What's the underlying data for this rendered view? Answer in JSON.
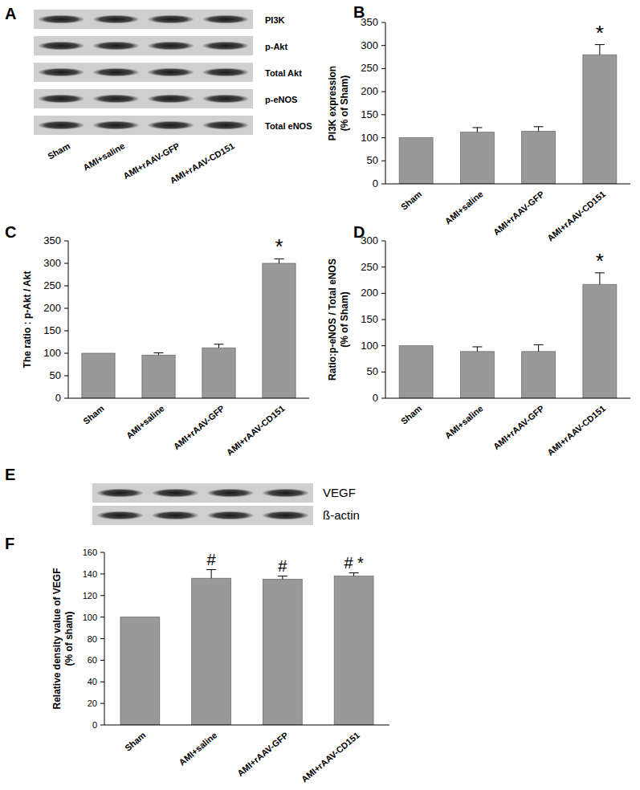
{
  "chart_data": [
    {
      "type": "bar",
      "panel": "B",
      "y_label": [
        "PI3K expression",
        "(% of Sham)"
      ],
      "categories": [
        "Sham",
        "AMI+saline",
        "AMI+rAAV-GFP",
        "AMI+rAAV-CD151"
      ],
      "values": [
        100,
        112,
        114,
        280
      ],
      "errors": [
        0,
        10,
        10,
        22
      ],
      "annotations": [
        null,
        null,
        null,
        "*"
      ],
      "color": "#999999",
      "ylim": [
        0,
        350
      ],
      "yticks": [
        0,
        50,
        100,
        150,
        200,
        250,
        300,
        350
      ],
      "grid": false
    },
    {
      "type": "bar",
      "panel": "C",
      "y_label": [
        "The ratio : p-Akt / Akt"
      ],
      "categories": [
        "Sham",
        "AMI+saline",
        "AMI+rAAV-GFP",
        "AMI+rAAV-CD151"
      ],
      "values": [
        100,
        96,
        112,
        300
      ],
      "errors": [
        0,
        5,
        8,
        10
      ],
      "annotations": [
        null,
        null,
        null,
        "*"
      ],
      "color": "#999999",
      "ylim": [
        0,
        350
      ],
      "yticks": [
        0,
        50,
        100,
        150,
        200,
        250,
        300,
        350
      ],
      "grid": false
    },
    {
      "type": "bar",
      "panel": "D",
      "y_label": [
        "Ratio:p-eNOS / Total eNOS",
        "(% of Sham)"
      ],
      "categories": [
        "Sham",
        "AMI+saline",
        "AMI+rAAV-GFP",
        "AMI+rAAV-CD151"
      ],
      "values": [
        100,
        89,
        89,
        217
      ],
      "errors": [
        0,
        9,
        13,
        22
      ],
      "annotations": [
        null,
        null,
        null,
        "*"
      ],
      "color": "#999999",
      "ylim": [
        0,
        300
      ],
      "yticks": [
        0,
        50,
        100,
        150,
        200,
        250,
        300
      ],
      "grid": false
    },
    {
      "type": "bar",
      "panel": "F",
      "y_label": [
        "Relative density value of VEGF",
        "(% of sham)"
      ],
      "categories": [
        "Sham",
        "AMI+saline",
        "AMI+rAAV-GFP",
        "AMI+rAAV-CD151"
      ],
      "values": [
        100,
        136,
        135,
        138
      ],
      "errors": [
        0,
        8,
        3,
        3
      ],
      "annotations": [
        null,
        "#",
        "#",
        "# *"
      ],
      "color": "#999999",
      "ylim": [
        0,
        160
      ],
      "yticks": [
        0,
        20,
        40,
        60,
        80,
        100,
        120,
        140,
        160
      ],
      "grid": false
    }
  ],
  "blots": [
    {
      "panel": "A",
      "rows": [
        "PI3K",
        "p-Akt",
        "Total Akt",
        "p-eNOS",
        "Total eNOS"
      ],
      "lanes": [
        "Sham",
        "AMI+saline",
        "AMI+rAAV-GFP",
        "AMI+rAAV-CD151"
      ]
    },
    {
      "panel": "E",
      "rows": [
        "VEGF",
        "ß-actin"
      ]
    }
  ]
}
